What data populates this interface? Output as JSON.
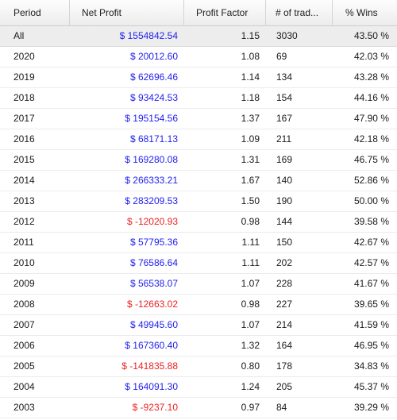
{
  "columns": {
    "period": "Period",
    "net_profit": "Net Profit",
    "profit_factor": "Profit Factor",
    "trades": "# of trad...",
    "wins": "% Wins"
  },
  "colors": {
    "positive": "#2222ee",
    "negative": "#ee2222",
    "header_bg": "#f2f2f2",
    "total_row_bg": "#ededed"
  },
  "rows": [
    {
      "period": "All",
      "net_profit": "$ 1554842.54",
      "profit_factor": "1.15",
      "trades": "3030",
      "wins": "43.50 %",
      "negative": false,
      "total": true
    },
    {
      "period": "2020",
      "net_profit": "$ 20012.60",
      "profit_factor": "1.08",
      "trades": "69",
      "wins": "42.03 %",
      "negative": false
    },
    {
      "period": "2019",
      "net_profit": "$ 62696.46",
      "profit_factor": "1.14",
      "trades": "134",
      "wins": "43.28 %",
      "negative": false
    },
    {
      "period": "2018",
      "net_profit": "$ 93424.53",
      "profit_factor": "1.18",
      "trades": "154",
      "wins": "44.16 %",
      "negative": false
    },
    {
      "period": "2017",
      "net_profit": "$ 195154.56",
      "profit_factor": "1.37",
      "trades": "167",
      "wins": "47.90 %",
      "negative": false
    },
    {
      "period": "2016",
      "net_profit": "$ 68171.13",
      "profit_factor": "1.09",
      "trades": "211",
      "wins": "42.18 %",
      "negative": false
    },
    {
      "period": "2015",
      "net_profit": "$ 169280.08",
      "profit_factor": "1.31",
      "trades": "169",
      "wins": "46.75 %",
      "negative": false
    },
    {
      "period": "2014",
      "net_profit": "$ 266333.21",
      "profit_factor": "1.67",
      "trades": "140",
      "wins": "52.86 %",
      "negative": false
    },
    {
      "period": "2013",
      "net_profit": "$ 283209.53",
      "profit_factor": "1.50",
      "trades": "190",
      "wins": "50.00 %",
      "negative": false
    },
    {
      "period": "2012",
      "net_profit": "$ -12020.93",
      "profit_factor": "0.98",
      "trades": "144",
      "wins": "39.58 %",
      "negative": true
    },
    {
      "period": "2011",
      "net_profit": "$ 57795.36",
      "profit_factor": "1.11",
      "trades": "150",
      "wins": "42.67 %",
      "negative": false
    },
    {
      "period": "2010",
      "net_profit": "$ 76586.64",
      "profit_factor": "1.11",
      "trades": "202",
      "wins": "42.57 %",
      "negative": false
    },
    {
      "period": "2009",
      "net_profit": "$ 56538.07",
      "profit_factor": "1.07",
      "trades": "228",
      "wins": "41.67 %",
      "negative": false
    },
    {
      "period": "2008",
      "net_profit": "$ -12663.02",
      "profit_factor": "0.98",
      "trades": "227",
      "wins": "39.65 %",
      "negative": true
    },
    {
      "period": "2007",
      "net_profit": "$ 49945.60",
      "profit_factor": "1.07",
      "trades": "214",
      "wins": "41.59 %",
      "negative": false
    },
    {
      "period": "2006",
      "net_profit": "$ 167360.40",
      "profit_factor": "1.32",
      "trades": "164",
      "wins": "46.95 %",
      "negative": false
    },
    {
      "period": "2005",
      "net_profit": "$ -141835.88",
      "profit_factor": "0.80",
      "trades": "178",
      "wins": "34.83 %",
      "negative": true
    },
    {
      "period": "2004",
      "net_profit": "$ 164091.30",
      "profit_factor": "1.24",
      "trades": "205",
      "wins": "45.37 %",
      "negative": false
    },
    {
      "period": "2003",
      "net_profit": "$ -9237.10",
      "profit_factor": "0.97",
      "trades": "84",
      "wins": "39.29 %",
      "negative": true
    }
  ]
}
